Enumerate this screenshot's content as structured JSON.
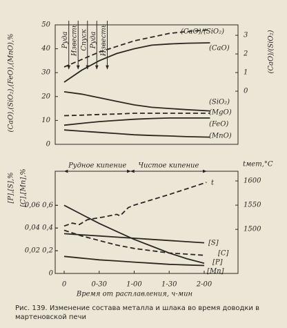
{
  "chart_data": [
    {
      "type": "line",
      "color": "#2a2622",
      "ylabel": "(CaO),(SiO₂),(FeO),(MnO),%",
      "y2label": "(CaO)/(SiO₂)",
      "xlim": [
        -7.7,
        149
      ],
      "ylim": [
        0,
        50
      ],
      "yticks": [
        0,
        10,
        20,
        30,
        40,
        50
      ],
      "y2lim": [
        -2.85,
        3.56
      ],
      "y2ticks": [
        0,
        1,
        2,
        3
      ],
      "annotations": [
        {
          "text": "Руда",
          "x": 1
        },
        {
          "text": "Известь",
          "x": 9
        },
        {
          "text": "Спуск",
          "x": 17
        },
        {
          "text": "Руда",
          "x": 25
        },
        {
          "text": "Известь",
          "x": 34
        }
      ],
      "series": [
        {
          "name": "(CaO)/(SiO₂)",
          "axis": "y2",
          "style": "dashed",
          "x": [
            0,
            15,
            30,
            45,
            60,
            75,
            90,
            105,
            125
          ],
          "values": [
            1.3,
            1.7,
            2.1,
            2.4,
            2.7,
            2.9,
            3.1,
            3.2,
            3.3
          ]
        },
        {
          "name": "(CaO)",
          "style": "solid",
          "x": [
            0,
            15,
            30,
            45,
            60,
            75,
            90,
            105,
            125
          ],
          "values": [
            26,
            31,
            35,
            38,
            40,
            41.5,
            42,
            42.3,
            42.5
          ]
        },
        {
          "name": "(SiO₂)",
          "style": "solid",
          "x": [
            0,
            15,
            30,
            45,
            60,
            75,
            90,
            105,
            125
          ],
          "values": [
            22,
            21,
            19.5,
            18,
            16.5,
            15.5,
            15,
            14.5,
            14
          ]
        },
        {
          "name": "(MgO)",
          "style": "dashed",
          "x": [
            0,
            15,
            30,
            45,
            60,
            75,
            90,
            105,
            125
          ],
          "values": [
            12,
            12.2,
            12.5,
            12.7,
            13,
            13,
            13,
            13,
            13
          ]
        },
        {
          "name": "(FeO)",
          "style": "solid",
          "x": [
            0,
            15,
            30,
            45,
            60,
            75,
            90,
            105,
            125
          ],
          "values": [
            8,
            8.8,
            9.5,
            10,
            10.5,
            10.8,
            11,
            11,
            11
          ]
        },
        {
          "name": "(MnO)",
          "style": "solid",
          "x": [
            0,
            15,
            30,
            45,
            60,
            75,
            90,
            105,
            125
          ],
          "values": [
            6,
            5.5,
            5,
            4.5,
            4,
            3.7,
            3.5,
            3.2,
            3
          ]
        }
      ]
    },
    {
      "type": "line",
      "color": "#2a2622",
      "xlabel": "Время от расплавления, ч-мин",
      "ylabel": "[C],[Mn],%",
      "y3label": "[P],[S],%",
      "y2label": "tмет,°C",
      "xlim": [
        -7.7,
        149
      ],
      "xticks": [
        0,
        {
          "value": 30,
          "label": "0-30"
        },
        {
          "value": 60,
          "label": "1-00"
        },
        {
          "value": 90,
          "label": "1-30"
        },
        {
          "value": 120,
          "label": "2-00"
        }
      ],
      "ylim": [
        0,
        0.9
      ],
      "yticks": [
        0,
        {
          "value": 0.2,
          "label": "0,2"
        },
        {
          "value": 0.4,
          "label": "0,4"
        },
        {
          "value": 0.6,
          "label": "0,6"
        }
      ],
      "y3lim": [
        0,
        0.09
      ],
      "y3ticks": [
        {
          "value": 0.02,
          "label": "0,02"
        },
        {
          "value": 0.04,
          "label": "0,04"
        },
        {
          "value": 0.06,
          "label": "0,06"
        }
      ],
      "y2lim": [
        1409,
        1620
      ],
      "y2ticks": [
        1500,
        1550,
        1600
      ],
      "phases": [
        {
          "label": "Рудное кипение",
          "start": 0,
          "end": 57
        },
        {
          "label": "Чистое кипение",
          "start": 57,
          "end": 122
        }
      ],
      "series": [
        {
          "name": "[S]",
          "axis": "y3",
          "style": "solid",
          "x": [
            0,
            15,
            30,
            45,
            60,
            75,
            90,
            105,
            120
          ],
          "values": [
            0.035,
            0.034,
            0.033,
            0.032,
            0.031,
            0.03,
            0.029,
            0.028,
            0.027
          ]
        },
        {
          "name": "[C]",
          "style": "dashed",
          "x": [
            0,
            15,
            30,
            45,
            60,
            75,
            90,
            105,
            120
          ],
          "values": [
            0.38,
            0.33,
            0.29,
            0.25,
            0.22,
            0.2,
            0.18,
            0.17,
            0.16
          ]
        },
        {
          "name": "[P]",
          "axis": "y3",
          "style": "solid",
          "x": [
            0,
            15,
            30,
            45,
            60,
            75,
            90,
            105,
            120
          ],
          "values": [
            0.06,
            0.052,
            0.044,
            0.037,
            0.03,
            0.024,
            0.018,
            0.013,
            0.009
          ]
        },
        {
          "name": "[Mn]",
          "style": "solid",
          "x": [
            0,
            15,
            30,
            45,
            60,
            75,
            90,
            105,
            120
          ],
          "values": [
            0.15,
            0.135,
            0.12,
            0.11,
            0.1,
            0.09,
            0.08,
            0.075,
            0.07
          ]
        },
        {
          "name": "t",
          "axis": "y2",
          "style": "dashed",
          "x": [
            0,
            7,
            13,
            20,
            35,
            45,
            48,
            55,
            60,
            90,
            122
          ],
          "values": [
            1507,
            1513,
            1510,
            1520,
            1526,
            1531,
            1528,
            1545,
            1550,
            1572,
            1597
          ]
        }
      ]
    }
  ],
  "caption": "Рис. 139. Изменение состава металла и шлака во время доводки в мартеновской печи"
}
